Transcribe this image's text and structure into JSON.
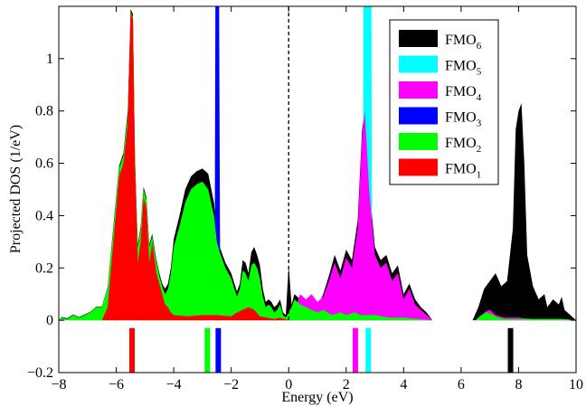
{
  "chart_data": {
    "type": "area",
    "xlabel": "Energy (eV)",
    "ylabel": "Projected DOS (1/eV)",
    "xlim": [
      -8,
      10
    ],
    "ylim": [
      -0.2,
      1.2
    ],
    "xticks": [
      -8,
      -6,
      -4,
      -2,
      0,
      2,
      4,
      6,
      8,
      10
    ],
    "xtick_labels": [
      "−8",
      "−6",
      "−4",
      "−2",
      "0",
      "2",
      "4",
      "6",
      "8",
      "10"
    ],
    "yticks": [
      -0.2,
      0,
      0.2,
      0.4,
      0.6,
      0.8,
      1
    ],
    "ytick_labels": [
      "−0.2",
      "0",
      "0.2",
      "0.4",
      "0.6",
      "0.8",
      "1"
    ],
    "fermi_level": 0,
    "legend_position": "top-right",
    "legend": [
      {
        "label": "FMO",
        "sub": "6",
        "color": "#000000"
      },
      {
        "label": "FMO",
        "sub": "5",
        "color": "#00ffff"
      },
      {
        "label": "FMO",
        "sub": "4",
        "color": "#ff00ff"
      },
      {
        "label": "FMO",
        "sub": "3",
        "color": "#0000ff"
      },
      {
        "label": "FMO",
        "sub": "2",
        "color": "#00ff00"
      },
      {
        "label": "FMO",
        "sub": "1",
        "color": "#ff0000"
      }
    ],
    "series": [
      {
        "color": "#ff0000",
        "x": [
          -8,
          -6.5,
          -6.3,
          -6.1,
          -5.9,
          -5.75,
          -5.6,
          -5.5,
          -5.42,
          -5.35,
          -5.25,
          -5.15,
          -5.05,
          -4.95,
          -4.85,
          -4.75,
          -4.6,
          -4.5,
          -4.4,
          -4.3,
          -4.2,
          -4.1,
          -4.0,
          -3.5,
          -3.0,
          -2.5,
          -2.0,
          -1.8,
          -1.6,
          -1.4,
          -1.2,
          -1.0,
          -0.5,
          -0.3,
          0,
          10
        ],
        "y": [
          0,
          0,
          0.05,
          0.3,
          0.55,
          0.6,
          0.75,
          1.18,
          1.15,
          0.6,
          0.22,
          0.3,
          0.47,
          0.43,
          0.22,
          0.3,
          0.18,
          0.14,
          0.1,
          0.06,
          0.05,
          0.03,
          0.02,
          0.015,
          0.02,
          0.02,
          0.015,
          0.03,
          0.04,
          0.05,
          0.04,
          0.015,
          0.005,
          0.01,
          0,
          0
        ]
      },
      {
        "color": "#00ff00",
        "x": [
          -8,
          -7.9,
          -7.7,
          -7.5,
          -7.3,
          -7.1,
          -6.9,
          -6.7,
          -6.5,
          -6.3,
          -6.1,
          -5.9,
          -5.75,
          -5.6,
          -5.5,
          -5.42,
          -5.35,
          -5.25,
          -5.15,
          -5.05,
          -4.95,
          -4.85,
          -4.75,
          -4.6,
          -4.5,
          -4.4,
          -4.3,
          -4.2,
          -4.1,
          -4.0,
          -3.8,
          -3.6,
          -3.4,
          -3.2,
          -3.0,
          -2.8,
          -2.6,
          -2.5,
          -2.4,
          -2.2,
          -2.0,
          -1.8,
          -1.7,
          -1.6,
          -1.5,
          -1.4,
          -1.3,
          -1.2,
          -1.1,
          -1.0,
          -0.9,
          -0.8,
          -0.7,
          -0.6,
          -0.5,
          -0.4,
          -0.3,
          -0.2,
          -0.1,
          0,
          0.1,
          0.2,
          0.4,
          0.6,
          0.8,
          1.0,
          1.2,
          1.5,
          1.8,
          2.0,
          2.3,
          2.5,
          2.7,
          3.0,
          3.5,
          4.0,
          4.5,
          5.0,
          6.5,
          6.7,
          6.9,
          7.1,
          7.3,
          7.5,
          8.0,
          8.5,
          9.0,
          9.5,
          10
        ],
        "y": [
          0,
          0.01,
          0.005,
          0.02,
          0.01,
          0.02,
          0.03,
          0.05,
          0.05,
          0.12,
          0.35,
          0.58,
          0.63,
          0.78,
          1.18,
          1.16,
          0.62,
          0.28,
          0.35,
          0.5,
          0.46,
          0.28,
          0.32,
          0.22,
          0.17,
          0.13,
          0.1,
          0.12,
          0.18,
          0.28,
          0.36,
          0.45,
          0.5,
          0.52,
          0.53,
          0.5,
          0.4,
          0.3,
          0.26,
          0.2,
          0.16,
          0.09,
          0.12,
          0.19,
          0.18,
          0.15,
          0.21,
          0.22,
          0.2,
          0.16,
          0.09,
          0.05,
          0.06,
          0.05,
          0.03,
          0.04,
          0.06,
          0.02,
          0.01,
          0.03,
          0.05,
          0.08,
          0.06,
          0.05,
          0.04,
          0.03,
          0.04,
          0.02,
          0.03,
          0.02,
          0.03,
          0.02,
          0.02,
          0.02,
          0.01,
          0.01,
          0.005,
          0,
          0,
          0.02,
          0.03,
          0.02,
          0.01,
          0.005,
          0.005,
          0.005,
          0.005,
          0.005,
          0
        ]
      },
      {
        "color": "#0000ff",
        "x": [
          -8,
          -2.58,
          -2.55,
          -2.42,
          -2.38,
          10
        ],
        "y": [
          0,
          0,
          1.2,
          1.2,
          0,
          0
        ]
      },
      {
        "color": "#ff00ff",
        "x": [
          -8,
          -1.9,
          -1.6,
          -1.3,
          -1.0,
          -0.8,
          -0.6,
          -0.5,
          -0.3,
          0,
          0.1,
          0.2,
          0.4,
          0.6,
          0.8,
          1.0,
          1.2,
          1.4,
          1.6,
          1.8,
          2.0,
          2.2,
          2.4,
          2.55,
          2.65,
          2.8,
          3.0,
          3.2,
          3.4,
          3.6,
          3.8,
          4.0,
          4.2,
          4.4,
          4.6,
          4.8,
          5.0,
          6.6,
          6.8,
          7.0,
          7.2,
          7.5,
          8.0,
          8.5,
          9.0,
          9.5,
          10
        ],
        "y": [
          0,
          0,
          0.005,
          0.01,
          0.02,
          0.015,
          0.01,
          0.008,
          0.005,
          0,
          0.01,
          0.04,
          0.1,
          0.08,
          0.1,
          0.07,
          0.09,
          0.15,
          0.22,
          0.16,
          0.24,
          0.2,
          0.35,
          0.7,
          0.8,
          0.5,
          0.25,
          0.2,
          0.22,
          0.15,
          0.18,
          0.08,
          0.12,
          0.06,
          0.04,
          0.02,
          0,
          0,
          0.03,
          0.04,
          0.02,
          0.01,
          0.01,
          0.005,
          0.005,
          0.005,
          0
        ]
      },
      {
        "color": "#00ffff",
        "x": [
          -8,
          2.58,
          2.6,
          2.88,
          2.9,
          10
        ],
        "y": [
          0,
          0,
          1.2,
          1.2,
          0,
          0
        ]
      },
      {
        "color": "#000000",
        "x": [
          -8,
          -7.9,
          -7.7,
          -7.5,
          -7.3,
          -7.1,
          -6.9,
          -6.7,
          -6.5,
          -6.3,
          -6.1,
          -5.9,
          -5.75,
          -5.6,
          -5.5,
          -5.42,
          -5.35,
          -5.25,
          -5.15,
          -5.05,
          -4.95,
          -4.85,
          -4.75,
          -4.6,
          -4.5,
          -4.4,
          -4.3,
          -4.2,
          -4.1,
          -4.0,
          -3.8,
          -3.6,
          -3.4,
          -3.2,
          -3.0,
          -2.8,
          -2.6,
          -2.5,
          -2.4,
          -2.2,
          -2.0,
          -1.8,
          -1.7,
          -1.6,
          -1.5,
          -1.4,
          -1.3,
          -1.2,
          -1.1,
          -1.0,
          -0.9,
          -0.8,
          -0.7,
          -0.6,
          -0.5,
          -0.4,
          -0.3,
          -0.2,
          -0.1,
          0,
          0.1,
          0.2,
          0.4,
          0.6,
          0.8,
          1.0,
          1.2,
          1.4,
          1.6,
          1.8,
          2.0,
          2.2,
          2.4,
          2.55,
          2.65,
          2.8,
          3.0,
          3.2,
          3.4,
          3.6,
          3.8,
          4.0,
          4.2,
          4.4,
          4.6,
          4.8,
          5.0,
          6.4,
          6.6,
          6.8,
          7.0,
          7.2,
          7.4,
          7.6,
          7.8,
          7.9,
          8.0,
          8.1,
          8.2,
          8.3,
          8.5,
          8.7,
          8.9,
          9.0,
          9.2,
          9.4,
          9.5,
          9.6,
          9.8,
          10
        ],
        "y": [
          0,
          0.012,
          0.008,
          0.022,
          0.012,
          0.022,
          0.032,
          0.052,
          0.052,
          0.125,
          0.36,
          0.59,
          0.64,
          0.8,
          1.19,
          1.17,
          0.63,
          0.29,
          0.36,
          0.51,
          0.47,
          0.29,
          0.33,
          0.23,
          0.18,
          0.14,
          0.12,
          0.14,
          0.2,
          0.31,
          0.4,
          0.5,
          0.55,
          0.57,
          0.58,
          0.56,
          0.45,
          0.33,
          0.28,
          0.22,
          0.18,
          0.11,
          0.14,
          0.23,
          0.22,
          0.18,
          0.26,
          0.28,
          0.25,
          0.21,
          0.12,
          0.07,
          0.08,
          0.07,
          0.05,
          0.06,
          0.08,
          0.03,
          0.02,
          0.21,
          0.06,
          0.1,
          0.08,
          0.07,
          0.06,
          0.05,
          0.1,
          0.17,
          0.25,
          0.19,
          0.27,
          0.23,
          0.38,
          0.72,
          0.82,
          0.52,
          0.28,
          0.23,
          0.25,
          0.18,
          0.21,
          0.1,
          0.14,
          0.08,
          0.05,
          0.03,
          0,
          0,
          0.05,
          0.12,
          0.15,
          0.18,
          0.13,
          0.15,
          0.35,
          0.73,
          0.8,
          0.83,
          0.6,
          0.25,
          0.13,
          0.08,
          0.1,
          0.05,
          0.08,
          0.06,
          0.09,
          0.04,
          0.02,
          0
        ]
      }
    ],
    "levels": [
      {
        "x": -5.45,
        "color": "#ff0000"
      },
      {
        "x": -2.83,
        "color": "#00ff00"
      },
      {
        "x": -2.45,
        "color": "#0000ff"
      },
      {
        "x": 2.32,
        "color": "#ff00ff"
      },
      {
        "x": 2.77,
        "color": "#00ffff"
      },
      {
        "x": 7.72,
        "color": "#000000"
      }
    ],
    "level_range": [
      -0.03,
      -0.2
    ]
  }
}
